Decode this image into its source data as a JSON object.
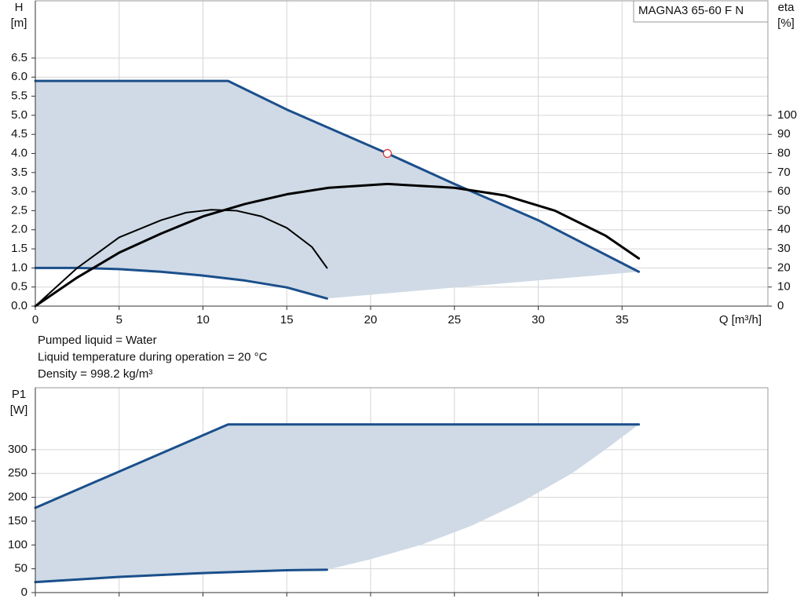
{
  "chart_data": [
    {
      "type": "line",
      "title": "MAGNA3 65-60 F N",
      "ylabel": "H",
      "yunit": "[m]",
      "y2label": "eta",
      "y2unit": "[%]",
      "xlabel": "Q [m³/h]",
      "notes": [
        "Pumped liquid = Water",
        "Liquid temperature during operation = 20 °C",
        "Density = 998.2 kg/m³"
      ],
      "xlim": [
        0,
        43.7
      ],
      "xticks": [
        0,
        5,
        10,
        15,
        20,
        25,
        30,
        35
      ],
      "ylim": [
        0,
        8
      ],
      "yticks": [
        {
          "value": 0,
          "label": "0.0"
        },
        0.5,
        {
          "value": 1,
          "label": "1.0"
        },
        1.5,
        {
          "value": 2,
          "label": "2.0"
        },
        2.5,
        {
          "value": 3,
          "label": "3.0"
        },
        3.5,
        {
          "value": 4,
          "label": "4.0"
        },
        4.5,
        {
          "value": 5,
          "label": "5.0"
        },
        5.5,
        {
          "value": 6,
          "label": "6.0"
        },
        6.5
      ],
      "y2lim": [
        0,
        160
      ],
      "y2ticks": [
        0,
        10,
        20,
        30,
        40,
        50,
        60,
        70,
        80,
        90,
        100
      ],
      "grid": true,
      "fill": "#cfdae6",
      "series": [
        {
          "color": "#1a4f8b",
          "x": [
            0,
            11.5,
            15,
            21,
            25,
            30,
            36
          ],
          "values": [
            5.9,
            5.9,
            5.15,
            4.0,
            3.2,
            2.25,
            0.9
          ]
        },
        {
          "color": "#1a4f8b",
          "x": [
            0,
            2.5,
            5,
            7.5,
            10,
            12.5,
            15,
            17.4
          ],
          "values": [
            1.0,
            1.0,
            0.97,
            0.9,
            0.8,
            0.67,
            0.49,
            0.2
          ]
        },
        {
          "color": "#000000",
          "axis": "y2",
          "x": [
            0,
            1,
            2.5,
            5,
            7.5,
            10,
            12.5,
            15,
            17.5,
            21,
            25,
            28,
            31,
            34,
            36
          ],
          "values": [
            0,
            6,
            15,
            28,
            38,
            47,
            53.5,
            58.6,
            62,
            64,
            62,
            58,
            50,
            37,
            25
          ]
        },
        {
          "color": "#000000",
          "axis": "y2",
          "thin": true,
          "x": [
            0,
            1,
            2.5,
            5,
            7.5,
            9,
            10.5,
            12,
            13.5,
            15,
            16.5,
            17.4
          ],
          "values": [
            0,
            8,
            20,
            36,
            45,
            49,
            50.5,
            50,
            47,
            41,
            31,
            20
          ]
        }
      ],
      "operating_point": {
        "x": 21,
        "y": 4.0,
        "color": "#e03030"
      }
    },
    {
      "type": "line",
      "ylabel": "P1",
      "yunit": "[W]",
      "xlim": [
        0,
        43.7
      ],
      "xticks": [
        0,
        5,
        10,
        15,
        20,
        25,
        30,
        35
      ],
      "ylim": [
        0,
        430
      ],
      "yticks": [
        0,
        50,
        100,
        150,
        200,
        250,
        300
      ],
      "grid": true,
      "fill": "#cfdae6",
      "series": [
        {
          "color": "#1a4f8b",
          "x": [
            0,
            11.5,
            36
          ],
          "values": [
            178,
            353,
            353
          ]
        },
        {
          "color": "#1a4f8b",
          "x": [
            0,
            5,
            10,
            15,
            17.4
          ],
          "values": [
            22,
            33,
            41,
            47,
            48
          ]
        }
      ],
      "boundary": {
        "x": [
          17.4,
          20,
          23,
          26,
          29,
          32,
          34,
          36
        ],
        "values": [
          48,
          70,
          100,
          140,
          190,
          250,
          300,
          353
        ]
      }
    }
  ]
}
